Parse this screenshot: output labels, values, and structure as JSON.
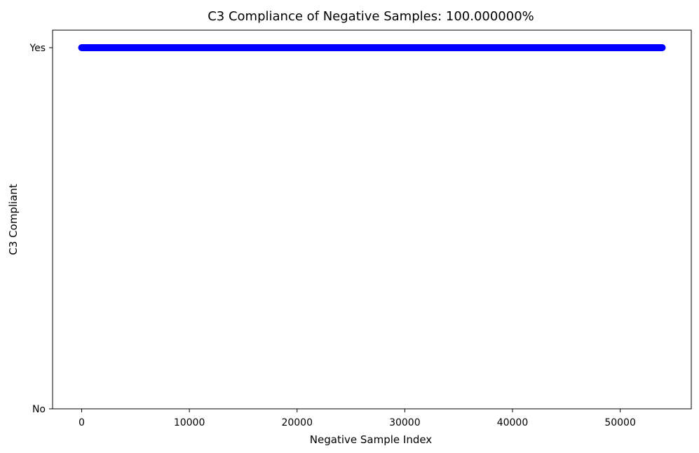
{
  "chart_data": {
    "type": "scatter",
    "title": "C3 Compliance of Negative Samples: 100.000000%",
    "xlabel": "Negative Sample Index",
    "ylabel": "C3 Compliant",
    "xlim": [
      -2700,
      56600
    ],
    "ylim": [
      0,
      1
    ],
    "x_ticks": [
      {
        "value": 0,
        "label": "0"
      },
      {
        "value": 10000,
        "label": "10000"
      },
      {
        "value": 20000,
        "label": "20000"
      },
      {
        "value": 30000,
        "label": "30000"
      },
      {
        "value": 40000,
        "label": "40000"
      },
      {
        "value": 50000,
        "label": "50000"
      }
    ],
    "y_ticks": [
      {
        "value": 0,
        "label": "No"
      },
      {
        "value": 1,
        "label": "Yes"
      }
    ],
    "series": [
      {
        "color": "#0000ff",
        "x_range": [
          0,
          53900
        ],
        "y": 1
      }
    ],
    "grid": false,
    "legend": "none"
  }
}
